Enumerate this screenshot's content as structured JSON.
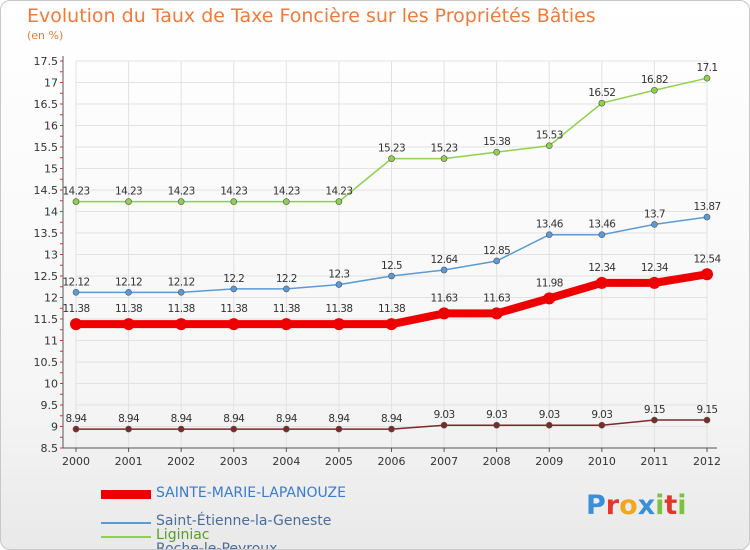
{
  "chart_data": {
    "type": "line",
    "title": "Evolution du Taux de Taxe Foncière sur les Propriétés Bâties",
    "ylabel": "(en %)",
    "x": [
      "2000",
      "2001",
      "2002",
      "2003",
      "2004",
      "2005",
      "2006",
      "2007",
      "2008",
      "2009",
      "2010",
      "2011",
      "2012"
    ],
    "ylim": [
      8.5,
      17.5
    ],
    "yticks": [
      "8.5",
      "9",
      "9.5",
      "10",
      "10.5",
      "11",
      "11.5",
      "12",
      "12.5",
      "13",
      "13.5",
      "14",
      "14.5",
      "15",
      "15.5",
      "16",
      "16.5",
      "17",
      "17.5"
    ],
    "grid": true,
    "series": [
      {
        "name": "SAINTE-MARIE-LAPANOUZE",
        "color": "#ee0000",
        "values": [
          11.38,
          11.38,
          11.38,
          11.38,
          11.38,
          11.38,
          11.38,
          11.63,
          11.63,
          11.98,
          12.34,
          12.34,
          12.54
        ],
        "labels": [
          "11.38",
          "11.38",
          "11.38",
          "11.38",
          "11.38",
          "11.38",
          "11.38",
          "11.63",
          "11.63",
          "11.98",
          "12.34",
          "12.34",
          "12.54"
        ]
      },
      {
        "name": "Saint-Étienne-la-Geneste",
        "color": "#5b9bd5",
        "values": [
          12.12,
          12.12,
          12.12,
          12.2,
          12.2,
          12.3,
          12.5,
          12.64,
          12.85,
          13.46,
          13.46,
          13.7,
          13.87
        ],
        "labels": [
          "12.12",
          "12.12",
          "12.12",
          "12.2",
          "12.2",
          "12.3",
          "12.5",
          "12.64",
          "12.85",
          "13.46",
          "13.46",
          "13.7",
          "13.87"
        ]
      },
      {
        "name": "Liginiac",
        "color": "#8fd14f",
        "values": [
          14.23,
          14.23,
          14.23,
          14.23,
          14.23,
          14.23,
          15.23,
          15.23,
          15.38,
          15.53,
          16.52,
          16.82,
          17.1
        ],
        "labels": [
          "14.23",
          "14.23",
          "14.23",
          "14.23",
          "14.23",
          "14.23",
          "15.23",
          "15.23",
          "15.38",
          "15.53",
          "16.52",
          "16.82",
          "17.1"
        ]
      },
      {
        "name": "Roche-le-Peyroux",
        "color": "#7a2a2a",
        "values": [
          8.94,
          8.94,
          8.94,
          8.94,
          8.94,
          8.94,
          8.94,
          9.03,
          9.03,
          9.03,
          9.03,
          9.15,
          9.15
        ],
        "labels": [
          "8.94",
          "8.94",
          "8.94",
          "8.94",
          "8.94",
          "8.94",
          "8.94",
          "9.03",
          "9.03",
          "9.03",
          "9.03",
          "9.15",
          "9.15"
        ]
      }
    ],
    "legend_position": "bottom-left"
  },
  "brand": {
    "letters": [
      "P",
      "r",
      "o",
      "x",
      "i",
      "t",
      "i"
    ],
    "colors": [
      "#3a8fd6",
      "#e0392b",
      "#f2a81d",
      "#3a8fd6",
      "#7cc242",
      "#e0392b",
      "#7cc242"
    ]
  }
}
